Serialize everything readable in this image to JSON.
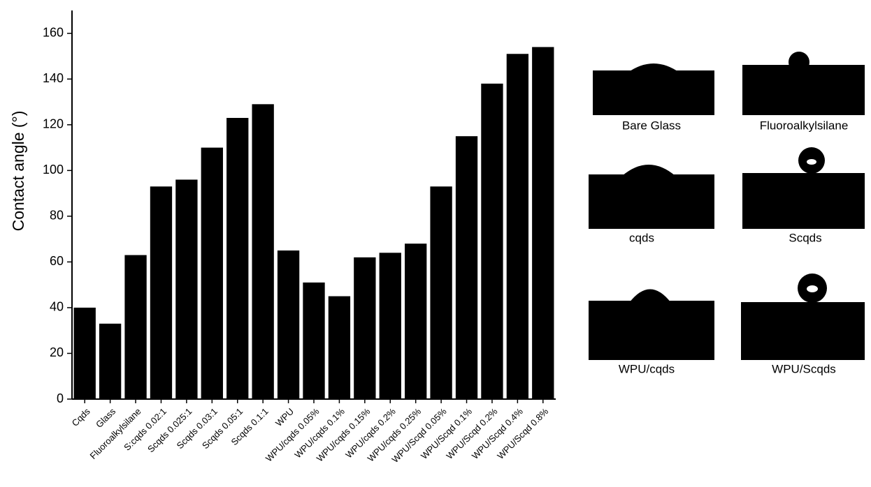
{
  "chart_data": {
    "type": "bar",
    "ylabel": "Contact angle (°)",
    "categories": [
      "Cqds",
      "Glass",
      "Fluoroalkylsilane",
      "S:cqds 0.02:1",
      "Scqds 0.025:1",
      "Scqds 0.03:1",
      "Scqds 0.05:1",
      "Scqds 0.1:1",
      "WPU",
      "WPU/cqds 0.05%",
      "WPU/cqds 0.1%",
      "WPU/cqds 0.15%",
      "WPU/cqds 0.2%",
      "WPU/cqds 0.25%",
      "WPU/Scqd 0.05%",
      "WPU/Scqd 0.1%",
      "WPU/Scqd 0.2%",
      "WPU/Scqd 0.4%",
      "WPU/Scqd 0.8%"
    ],
    "values": [
      40,
      33,
      63,
      93,
      96,
      110,
      123,
      129,
      65,
      51,
      45,
      62,
      64,
      68,
      93,
      115,
      138,
      151,
      154
    ],
    "color": "#000000",
    "ylim": [
      0,
      170
    ],
    "yticks": [
      0,
      20,
      40,
      60,
      80,
      100,
      120,
      140,
      160
    ],
    "grid": false
  },
  "images": {
    "labels": [
      "Bare Glass",
      "Fluoroalkylsilane",
      "cqds",
      "Scqds",
      "WPU/cqds",
      "WPU/Scqds"
    ]
  }
}
